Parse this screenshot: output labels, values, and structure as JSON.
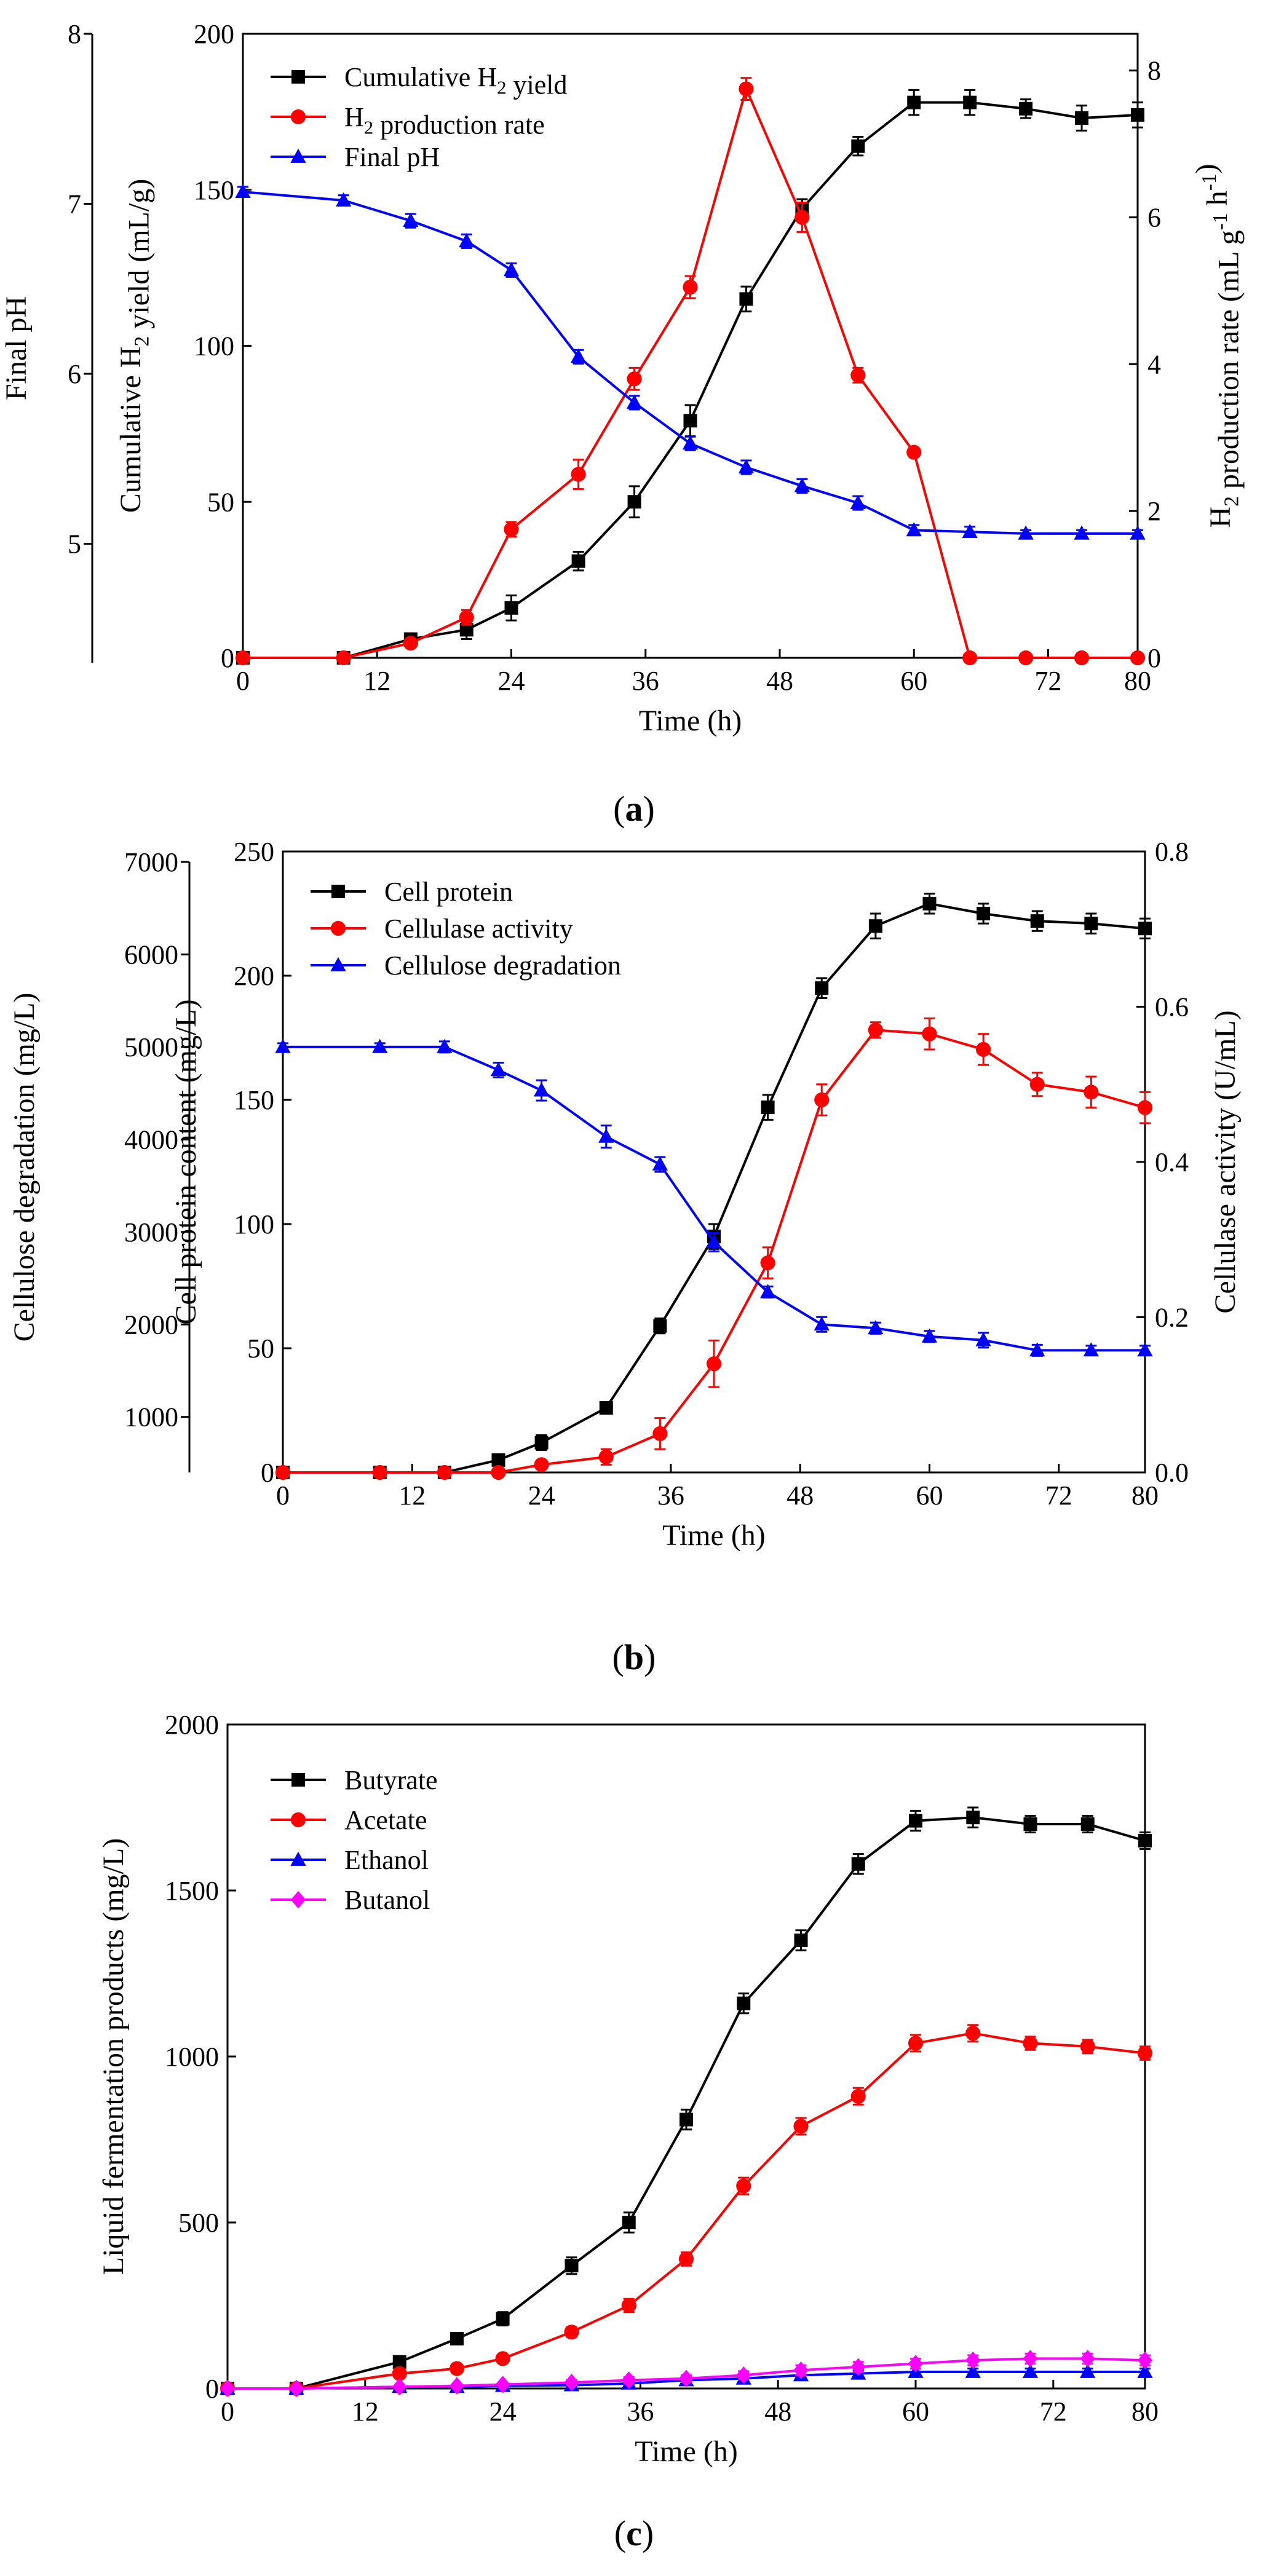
{
  "chart_data": [
    {
      "id": "a",
      "type": "line",
      "panel_label": "a",
      "xlabel": "Time (h)",
      "xlim": [
        0,
        80
      ],
      "xticks": [
        0,
        12,
        24,
        36,
        48,
        60,
        72,
        80
      ],
      "axes": {
        "left": {
          "label": "Cumulative H2 yield (mL/g)",
          "lim": [
            0,
            200
          ],
          "ticks": [
            0,
            50,
            100,
            150,
            200
          ]
        },
        "right": {
          "label": "H2 production rate (mL g-1 h-1)",
          "lim": [
            0,
            8.5
          ],
          "ticks": [
            0,
            2,
            4,
            6,
            8
          ]
        },
        "outer_left": {
          "label": "Final pH",
          "lim": [
            4.3,
            8.0
          ],
          "ticks": [
            5,
            6,
            7,
            8
          ]
        }
      },
      "series": [
        {
          "name": "Cumulative H2 yield",
          "axis": "left",
          "color": "#000000",
          "marker": "square",
          "x": [
            0,
            9,
            15,
            20,
            24,
            30,
            35,
            40,
            45,
            50,
            55,
            60,
            65,
            70,
            75,
            80
          ],
          "y": [
            0,
            0,
            6,
            9,
            16,
            31,
            50,
            76,
            115,
            144,
            164,
            178,
            178,
            176,
            173,
            174
          ],
          "err": [
            0,
            0,
            1,
            3,
            4,
            3,
            5,
            5,
            4,
            3,
            3,
            4,
            4,
            3,
            4,
            4
          ]
        },
        {
          "name": "H2 production rate",
          "axis": "right",
          "color": "#ff0000",
          "marker": "circle",
          "x": [
            0,
            9,
            15,
            20,
            24,
            30,
            35,
            40,
            45,
            50,
            55,
            60,
            65,
            70,
            75,
            80
          ],
          "y": [
            0,
            0,
            0.2,
            0.55,
            1.75,
            2.5,
            3.8,
            5.05,
            7.75,
            6.0,
            3.85,
            2.8,
            0,
            0,
            0,
            0
          ],
          "err": [
            0,
            0,
            0,
            0.1,
            0.1,
            0.2,
            0.15,
            0.15,
            0.15,
            0.2,
            0.1,
            0,
            0,
            0,
            0,
            0
          ]
        },
        {
          "name": "Final pH",
          "axis": "outer_left",
          "color": "#0000ff",
          "marker": "triangle",
          "x": [
            0,
            9,
            15,
            20,
            24,
            30,
            35,
            40,
            45,
            50,
            55,
            60,
            65,
            70,
            75,
            80
          ],
          "y": [
            7.07,
            7.02,
            6.9,
            6.78,
            6.61,
            6.1,
            5.83,
            5.59,
            5.45,
            5.34,
            5.24,
            5.08,
            5.07,
            5.06,
            5.06,
            5.06
          ],
          "err": [
            0.03,
            0.03,
            0.04,
            0.04,
            0.04,
            0.04,
            0.04,
            0.04,
            0.04,
            0.04,
            0.04,
            0.03,
            0.03,
            0.02,
            0.02,
            0.02
          ]
        }
      ],
      "legend": [
        "Cumulative H2 yield",
        "H2 production rate",
        "Final pH"
      ]
    },
    {
      "id": "b",
      "type": "line",
      "panel_label": "b",
      "xlabel": "Time (h)",
      "xlim": [
        0,
        80
      ],
      "xticks": [
        0,
        12,
        24,
        36,
        48,
        60,
        72,
        80
      ],
      "axes": {
        "left": {
          "label": "Cell protein content (mg/L)",
          "lim": [
            0,
            250
          ],
          "ticks": [
            0,
            50,
            100,
            150,
            200,
            250
          ]
        },
        "right": {
          "label": "Cellulase activity (U/mL)",
          "lim": [
            0,
            0.8
          ],
          "ticks": [
            0.0,
            0.2,
            0.4,
            0.6,
            0.8
          ]
        },
        "outer_left": {
          "label": "Cellulose degradation (mg/L)",
          "lim": [
            400,
            7000
          ],
          "ticks": [
            1000,
            2000,
            3000,
            4000,
            5000,
            6000,
            7000
          ]
        }
      },
      "series": [
        {
          "name": "Cell protein",
          "axis": "left",
          "color": "#000000",
          "marker": "square",
          "x": [
            0,
            9,
            15,
            20,
            24,
            30,
            35,
            40,
            45,
            50,
            55,
            60,
            65,
            70,
            75,
            80
          ],
          "y": [
            0,
            0,
            0,
            5,
            12,
            26,
            59,
            95,
            147,
            195,
            220,
            229,
            225,
            222,
            221,
            219
          ],
          "err": [
            0,
            0,
            0,
            2,
            3,
            2,
            3,
            5,
            5,
            4,
            5,
            4,
            4,
            4,
            4,
            4
          ]
        },
        {
          "name": "Cellulase activity",
          "axis": "right",
          "color": "#ff0000",
          "marker": "circle",
          "x": [
            0,
            9,
            15,
            20,
            24,
            30,
            35,
            40,
            45,
            50,
            55,
            60,
            65,
            70,
            75,
            80
          ],
          "y": [
            0,
            0,
            0,
            0,
            0.01,
            0.02,
            0.05,
            0.14,
            0.27,
            0.48,
            0.57,
            0.565,
            0.545,
            0.5,
            0.49,
            0.47
          ],
          "err": [
            0,
            0,
            0,
            0,
            0,
            0.01,
            0.02,
            0.03,
            0.02,
            0.02,
            0.01,
            0.02,
            0.02,
            0.015,
            0.02,
            0.02
          ]
        },
        {
          "name": "Cellulose degradation",
          "axis": "outer_left",
          "color": "#0000ff",
          "marker": "triangle",
          "x": [
            0,
            9,
            15,
            20,
            24,
            30,
            35,
            40,
            45,
            50,
            55,
            60,
            65,
            70,
            75,
            80
          ],
          "y": [
            5000,
            5000,
            5000,
            4750,
            4530,
            4030,
            3730,
            2890,
            2350,
            2000,
            1960,
            1870,
            1830,
            1720,
            1720,
            1720
          ],
          "err": [
            40,
            40,
            60,
            80,
            110,
            120,
            80,
            100,
            60,
            80,
            60,
            60,
            80,
            60,
            50,
            50
          ]
        }
      ],
      "legend": [
        "Cell protein",
        "Cellulase activity",
        "Cellulose degradation"
      ]
    },
    {
      "id": "c",
      "type": "line",
      "panel_label": "c",
      "xlabel": "Time (h)",
      "ylabel": "Liquid fermentation products (mg/L)",
      "xlim": [
        0,
        80
      ],
      "ylim": [
        0,
        2000
      ],
      "xticks": [
        0,
        12,
        24,
        36,
        48,
        60,
        72,
        80
      ],
      "yticks": [
        0,
        500,
        1000,
        1500,
        2000
      ],
      "series": [
        {
          "name": "Butyrate",
          "color": "#000000",
          "marker": "square",
          "x": [
            0,
            6,
            15,
            20,
            24,
            30,
            35,
            40,
            45,
            50,
            55,
            60,
            65,
            70,
            75,
            80
          ],
          "y": [
            0,
            0,
            80,
            150,
            210,
            370,
            500,
            810,
            1160,
            1350,
            1580,
            1710,
            1720,
            1700,
            1700,
            1650
          ],
          "err": [
            0,
            0,
            10,
            15,
            20,
            25,
            30,
            30,
            30,
            30,
            30,
            30,
            30,
            25,
            25,
            25
          ]
        },
        {
          "name": "Acetate",
          "color": "#ff0000",
          "marker": "circle",
          "x": [
            0,
            6,
            15,
            20,
            24,
            30,
            35,
            40,
            45,
            50,
            55,
            60,
            65,
            70,
            75,
            80
          ],
          "y": [
            0,
            0,
            45,
            60,
            90,
            170,
            250,
            390,
            610,
            790,
            880,
            1040,
            1070,
            1040,
            1030,
            1010
          ],
          "err": [
            0,
            0,
            5,
            8,
            10,
            15,
            20,
            20,
            25,
            25,
            25,
            25,
            25,
            20,
            20,
            20
          ]
        },
        {
          "name": "Ethanol",
          "color": "#0000ff",
          "marker": "triangle",
          "x": [
            0,
            6,
            15,
            20,
            24,
            30,
            35,
            40,
            45,
            50,
            55,
            60,
            65,
            70,
            75,
            80
          ],
          "y": [
            0,
            0,
            5,
            5,
            8,
            10,
            15,
            25,
            30,
            40,
            45,
            50,
            50,
            50,
            50,
            50
          ],
          "err": [
            0,
            0,
            2,
            3,
            3,
            5,
            5,
            8,
            10,
            10,
            10,
            10,
            10,
            10,
            10,
            10
          ]
        },
        {
          "name": "Butanol",
          "color": "#ff00ff",
          "marker": "diamond",
          "x": [
            0,
            6,
            15,
            20,
            24,
            30,
            35,
            40,
            45,
            50,
            55,
            60,
            65,
            70,
            75,
            80
          ],
          "y": [
            0,
            0,
            5,
            8,
            12,
            18,
            25,
            30,
            40,
            55,
            65,
            75,
            85,
            90,
            90,
            85
          ],
          "err": [
            0,
            0,
            2,
            3,
            5,
            8,
            10,
            10,
            12,
            15,
            15,
            15,
            15,
            15,
            15,
            15
          ]
        }
      ],
      "legend": [
        "Butyrate",
        "Acetate",
        "Ethanol",
        "Butanol"
      ]
    }
  ]
}
